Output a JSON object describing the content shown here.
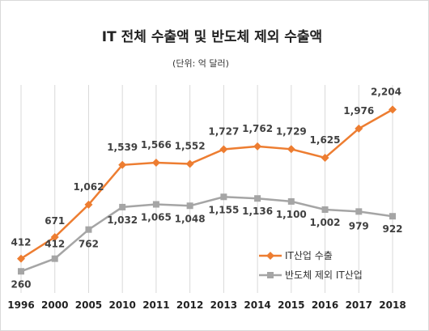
{
  "chart_data": {
    "type": "line",
    "title": "IT 전체 수출액 및 반도체 제외 수출액",
    "subtitle": "(단위: 억 달러)",
    "categories": [
      "1996",
      "2000",
      "2005",
      "2010",
      "2011",
      "2012",
      "2013",
      "2014",
      "2015",
      "2016",
      "2017",
      "2018"
    ],
    "series": [
      {
        "name": "IT산업 수출",
        "color": "#ed7d31",
        "values": [
          412,
          671,
          1062,
          1539,
          1566,
          1552,
          1727,
          1762,
          1729,
          1625,
          1976,
          2204
        ],
        "labels": [
          "412",
          "671",
          "1,062",
          "1,539",
          "1,566",
          "1,552",
          "1,727",
          "1,762",
          "1,729",
          "1,625",
          "1,976",
          "2,204"
        ]
      },
      {
        "name": "반도체 제외 IT산업",
        "color": "#a5a5a5",
        "values": [
          260,
          412,
          762,
          1032,
          1065,
          1048,
          1155,
          1136,
          1100,
          1002,
          979,
          922
        ],
        "labels": [
          "260",
          "412",
          "762",
          "1,032",
          "1,065",
          "1,048",
          "1,155",
          "1,136",
          "1,100",
          "1,002",
          "979",
          "922"
        ]
      }
    ],
    "ylim": [
      0,
      2500
    ],
    "grid": "vertical",
    "legend": "bottom-right"
  }
}
